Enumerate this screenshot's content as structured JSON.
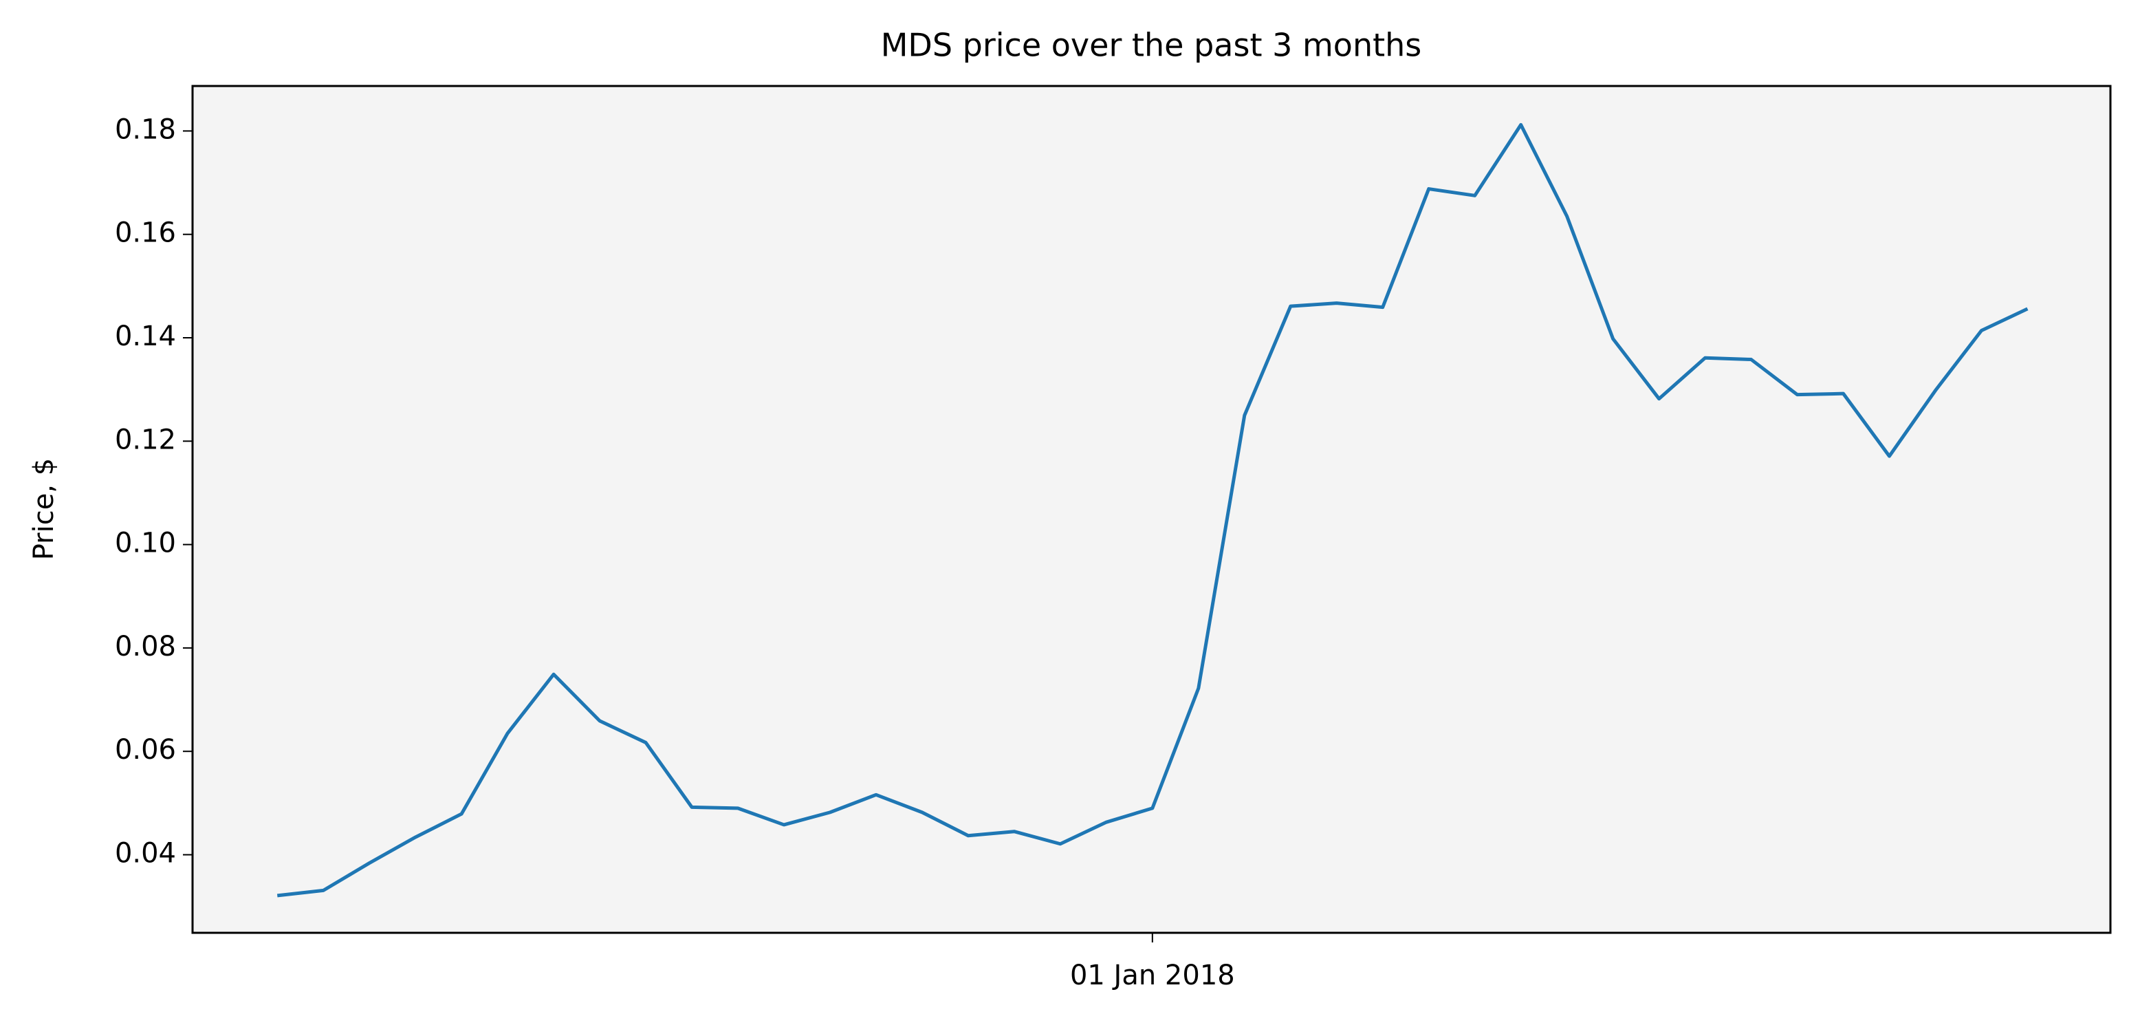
{
  "chart_data": {
    "type": "line",
    "title": "MDS price over the past 3 months",
    "ylabel": "Price, $",
    "categories": [
      null,
      null,
      null,
      null,
      null,
      null,
      null,
      null,
      null,
      null,
      null,
      null,
      null,
      null,
      null,
      null,
      null,
      null,
      null,
      "01 Jan 2018",
      null,
      null,
      null,
      null,
      null,
      null,
      null,
      null,
      null,
      null,
      null,
      null,
      null,
      null,
      null,
      null,
      null,
      null,
      null
    ],
    "values": [
      0.0321,
      0.0331,
      0.0384,
      0.0434,
      0.0479,
      0.0635,
      0.0749,
      0.0659,
      0.0617,
      0.0492,
      0.049,
      0.0458,
      0.0482,
      0.0516,
      0.0482,
      0.0437,
      0.0445,
      0.0421,
      0.0463,
      0.049,
      0.0722,
      0.125,
      0.1461,
      0.1467,
      0.1459,
      0.1688,
      0.1675,
      0.1812,
      0.1635,
      0.1398,
      0.1282,
      0.1361,
      0.1358,
      0.129,
      0.1292,
      0.1171,
      0.1298,
      0.1414,
      0.1456
    ],
    "color": "#1f77b4",
    "background": "#f4f4f4",
    "ylim": [
      0.0249,
      0.1887
    ],
    "yticks": [
      0.04,
      0.06,
      0.08,
      {
        "value": 0.1,
        "label": "0.10"
      },
      0.12,
      0.14,
      0.16,
      0.18
    ],
    "grid": false
  }
}
